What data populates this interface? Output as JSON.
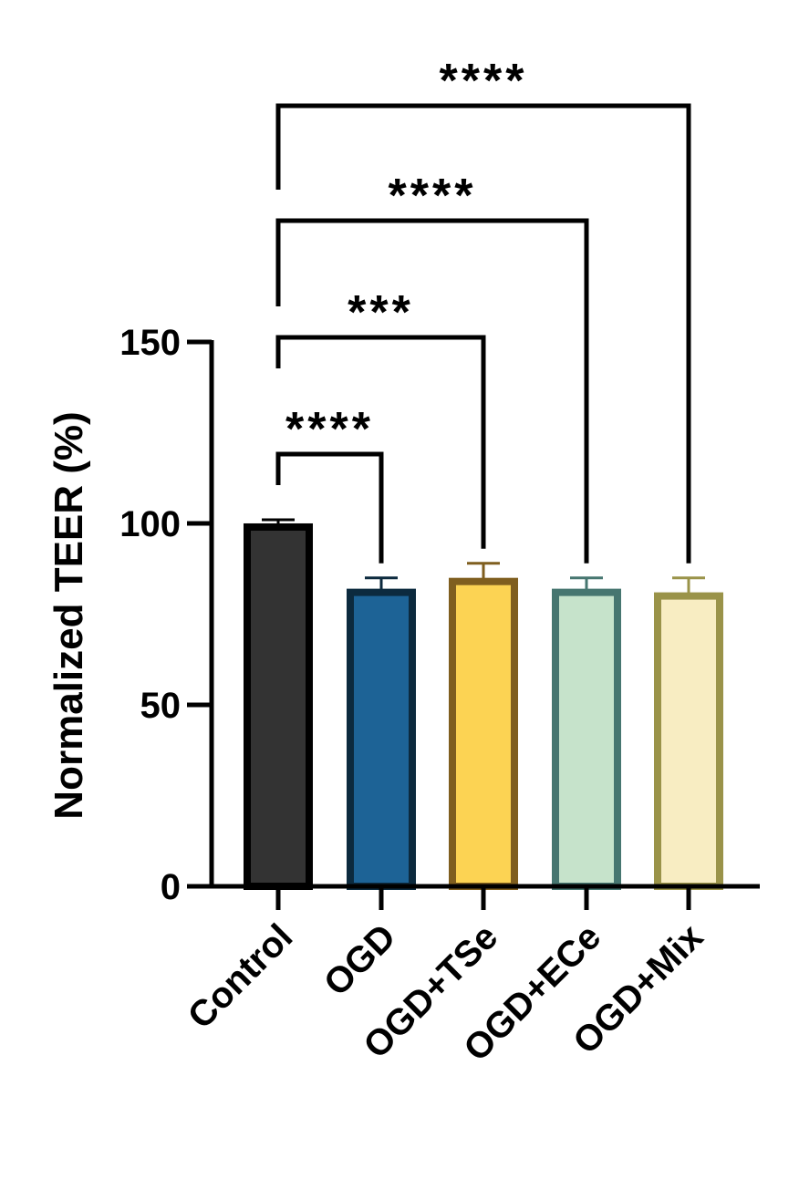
{
  "chart_data": {
    "type": "bar",
    "title": "",
    "xlabel": "",
    "ylabel": "Normalized TEER (%)",
    "ylim": [
      0,
      150
    ],
    "yticks": [
      "0",
      "50",
      "100",
      "150"
    ],
    "categories": [
      "Control",
      "OGD",
      "OGD+TSe",
      "OGD+ECe",
      "OGD+Mix"
    ],
    "values": [
      99,
      81,
      84,
      81,
      80
    ],
    "errors": [
      2,
      4,
      5,
      4,
      5
    ],
    "colors": {
      "fill": [
        "#333333",
        "#1d6396",
        "#fcd353",
        "#c6e3cb",
        "#f8edc2"
      ],
      "edge": [
        "#000000",
        "#0c2a3e",
        "#7f5e1f",
        "#467670",
        "#9a9349"
      ]
    },
    "comparisons": [
      {
        "from": "Control",
        "to": "OGD",
        "label": "****"
      },
      {
        "from": "Control",
        "to": "OGD+TSe",
        "label": "***"
      },
      {
        "from": "Control",
        "to": "OGD+ECe",
        "label": "****"
      },
      {
        "from": "Control",
        "to": "OGD+Mix",
        "label": "****"
      }
    ],
    "grid": false,
    "legend": "none"
  }
}
